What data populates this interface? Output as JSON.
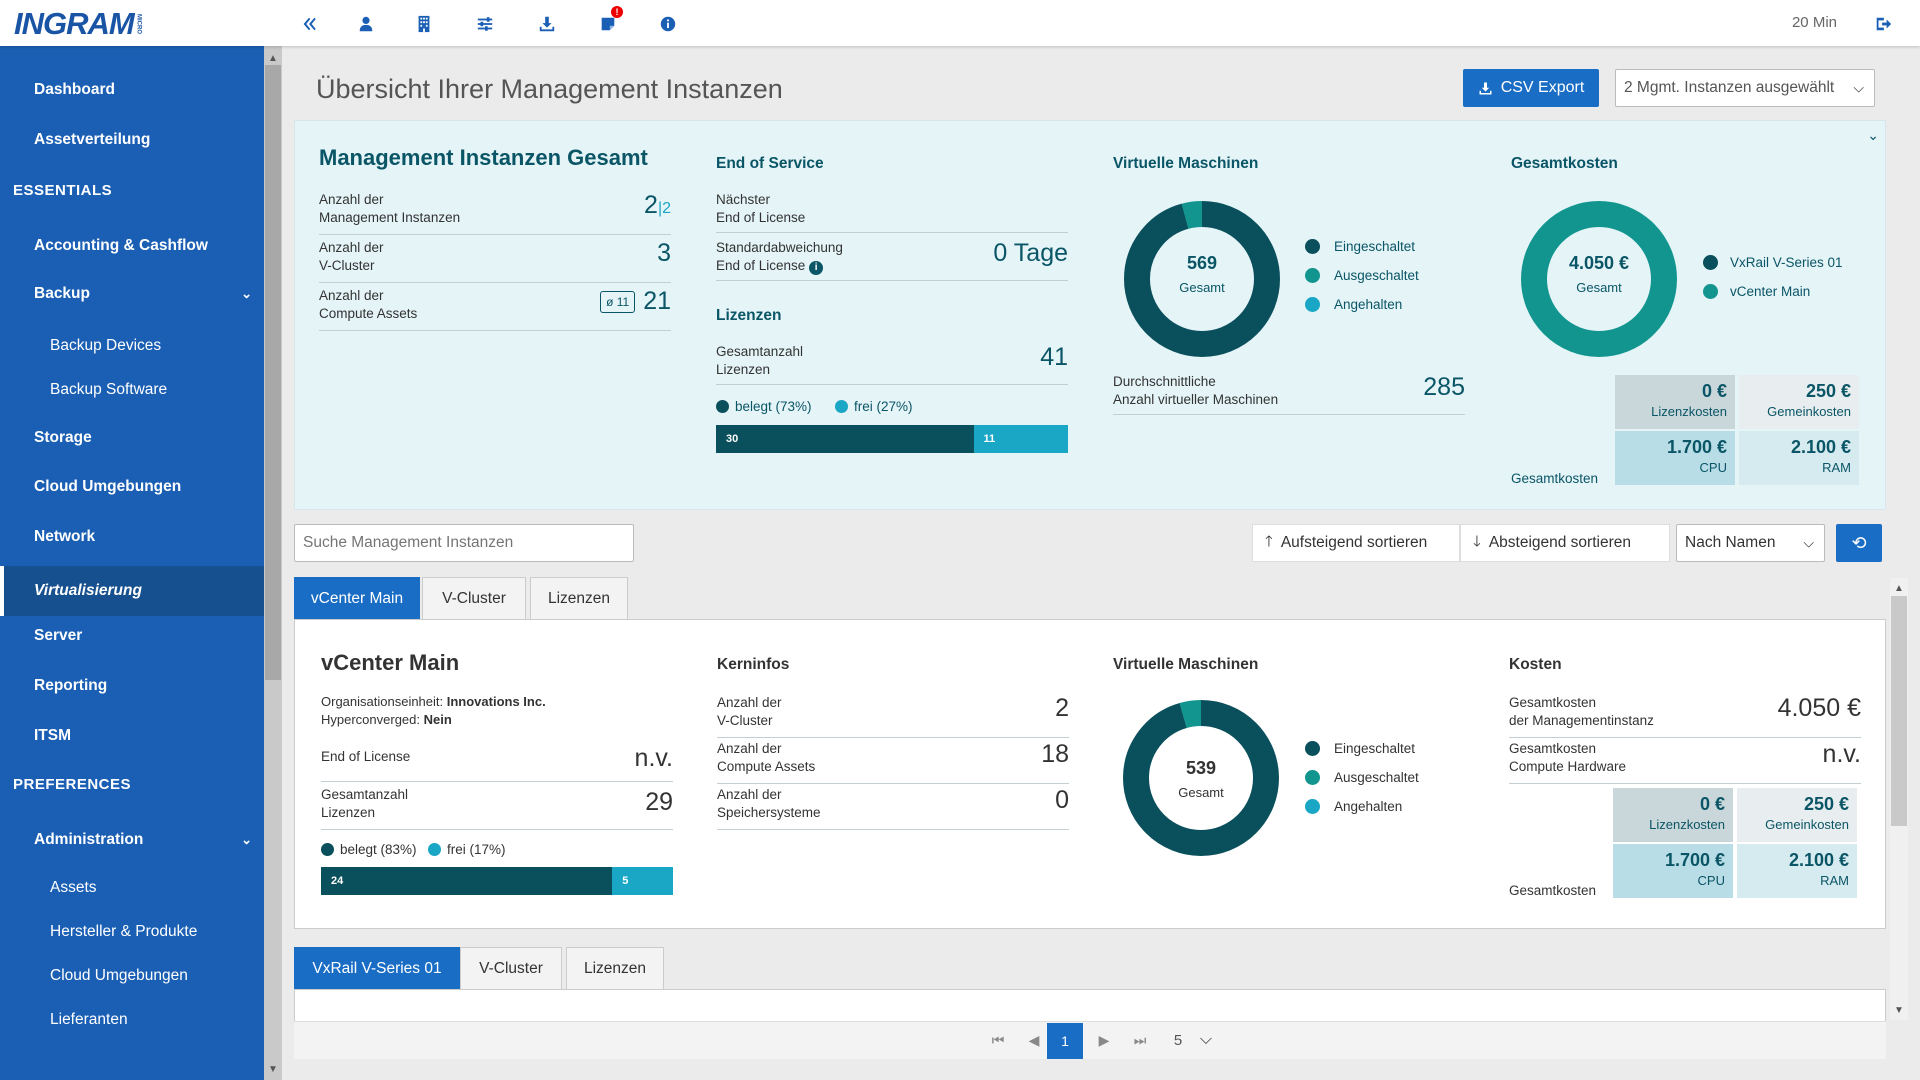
{
  "brand": {
    "logo": "INGRAM",
    "logo_sub": "MICRO"
  },
  "topbar": {
    "icons": [
      "double-chevron-left-icon",
      "user-icon",
      "building-icon",
      "sliders-icon",
      "download-icon",
      "notes-icon",
      "info-icon"
    ],
    "badge": "!",
    "timer": "20 Min"
  },
  "sidebar": {
    "items": [
      {
        "label": "Dashboard",
        "type": "item"
      },
      {
        "label": "Assetverteilung",
        "type": "item"
      },
      {
        "label": "ESSENTIALS",
        "type": "section"
      },
      {
        "label": "Accounting & Cashflow",
        "type": "item"
      },
      {
        "label": "Backup",
        "type": "item",
        "expandable": true
      },
      {
        "label": "Backup Devices",
        "type": "sub"
      },
      {
        "label": "Backup Software",
        "type": "sub"
      },
      {
        "label": "Storage",
        "type": "item"
      },
      {
        "label": "Cloud Umgebungen",
        "type": "item"
      },
      {
        "label": "Network",
        "type": "item"
      },
      {
        "label": "Virtualisierung",
        "type": "item",
        "active": true
      },
      {
        "label": "Server",
        "type": "item"
      },
      {
        "label": "Reporting",
        "type": "item"
      },
      {
        "label": "ITSM",
        "type": "item"
      },
      {
        "label": "PREFERENCES",
        "type": "section"
      },
      {
        "label": "Administration",
        "type": "item",
        "expandable": true
      },
      {
        "label": "Assets",
        "type": "sub"
      },
      {
        "label": "Hersteller & Produkte",
        "type": "sub"
      },
      {
        "label": "Cloud Umgebungen",
        "type": "sub"
      },
      {
        "label": "Lieferanten",
        "type": "sub"
      }
    ]
  },
  "header": {
    "title": "Übersicht Ihrer Management Instanzen",
    "csv_label": "CSV Export",
    "instances_select": "2 Mgmt. Instanzen ausgewählt"
  },
  "summary": {
    "mgmt": {
      "title": "Management Instanzen Gesamt",
      "rows": [
        {
          "label1": "Anzahl der",
          "label2": "Management Instanzen",
          "value": "2",
          "value_sub": "|2"
        },
        {
          "label1": "Anzahl der",
          "label2": "V-Cluster",
          "value": "3"
        },
        {
          "label1": "Anzahl der",
          "label2": "Compute Assets",
          "value": "21",
          "badge": "ø 11"
        }
      ]
    },
    "eos": {
      "title": "End of Service",
      "r1_l1": "Nächster",
      "r1_l2": "End of License",
      "r2_l1": "Standardabweichung",
      "r2_l2": "End of License",
      "r2_val": "0 Tage",
      "lic_title": "Lizenzen",
      "lic_l1": "Gesamtanzahl",
      "lic_l2": "Lizenzen",
      "lic_val": "41",
      "legend_used": "belegt (73%)",
      "legend_free": "frei (27%)",
      "bar_used": 30,
      "bar_free": 11
    },
    "vm": {
      "title": "Virtuelle Maschinen",
      "total": "569",
      "total_label": "Gesamt",
      "on": 545,
      "off": 0,
      "paused": 24,
      "legend": [
        "Eingeschaltet",
        "Ausgeschaltet",
        "Angehalten"
      ],
      "avg_l1": "Durchschnittliche",
      "avg_l2": "Anzahl virtueller Maschinen",
      "avg_val": "285"
    },
    "cost": {
      "title": "Gesamtkosten",
      "total": "4.050 €",
      "total_label": "Gesamt",
      "legend": [
        "VxRail V-Series 01",
        "vCenter Main"
      ],
      "share_vxrail": 0,
      "share_vcenter": 4050,
      "boxes": [
        {
          "val": "0 €",
          "lbl": "Lizenzkosten"
        },
        {
          "val": "250 €",
          "lbl": "Gemeinkosten"
        },
        {
          "val": "1.700 €",
          "lbl": "CPU"
        },
        {
          "val": "2.100 €",
          "lbl": "RAM"
        }
      ],
      "footer": "Gesamtkosten"
    }
  },
  "toolbar": {
    "search_placeholder": "Suche Management Instanzen",
    "asc": "Aufsteigend sortieren",
    "desc": "Absteigend sortieren",
    "sort_by": "Nach Namen"
  },
  "instance1": {
    "tabs": [
      "vCenter Main",
      "V-Cluster",
      "Lizenzen"
    ],
    "name": "vCenter Main",
    "org_label": "Organisationseinheit: ",
    "org_val": "Innovations Inc.",
    "hyper_label": "Hyperconverged: ",
    "hyper_val": "Nein",
    "eol_label": "End of License",
    "eol_val": "n.v.",
    "lic_l1": "Gesamtanzahl",
    "lic_l2": "Lizenzen",
    "lic_val": "29",
    "legend_used": "belegt (83%)",
    "legend_free": "frei (17%)",
    "bar_used": 24,
    "bar_free": 5,
    "kern": {
      "title": "Kerninfos",
      "rows": [
        {
          "l1": "Anzahl der",
          "l2": "V-Cluster",
          "v": "2"
        },
        {
          "l1": "Anzahl der",
          "l2": "Compute Assets",
          "v": "18"
        },
        {
          "l1": "Anzahl der",
          "l2": "Speichersysteme",
          "v": "0"
        }
      ]
    },
    "vm": {
      "title": "Virtuelle Maschinen",
      "total": "539",
      "total_label": "Gesamt",
      "on": 515,
      "off": 0,
      "paused": 24,
      "legend": [
        "Eingeschaltet",
        "Ausgeschaltet",
        "Angehalten"
      ]
    },
    "cost": {
      "title": "Kosten",
      "r1_l1": "Gesamtkosten",
      "r1_l2": "der Managementinstanz",
      "r1_v": "4.050 €",
      "r2_l1": "Gesamtkosten",
      "r2_l2": "Compute Hardware",
      "r2_v": "n.v.",
      "boxes": [
        {
          "val": "0 €",
          "lbl": "Lizenzkosten"
        },
        {
          "val": "250 €",
          "lbl": "Gemeinkosten"
        },
        {
          "val": "1.700 €",
          "lbl": "CPU"
        },
        {
          "val": "2.100 €",
          "lbl": "RAM"
        }
      ],
      "footer": "Gesamtkosten"
    }
  },
  "instance2": {
    "tabs": [
      "VxRail V-Series 01",
      "V-Cluster",
      "Lizenzen"
    ]
  },
  "pager": {
    "current": "1",
    "page_size": "5"
  },
  "colors": {
    "dark": "#0a4f5c",
    "mid": "#13958f",
    "light": "#1aa6c5",
    "brand": "#1a5fb4"
  }
}
